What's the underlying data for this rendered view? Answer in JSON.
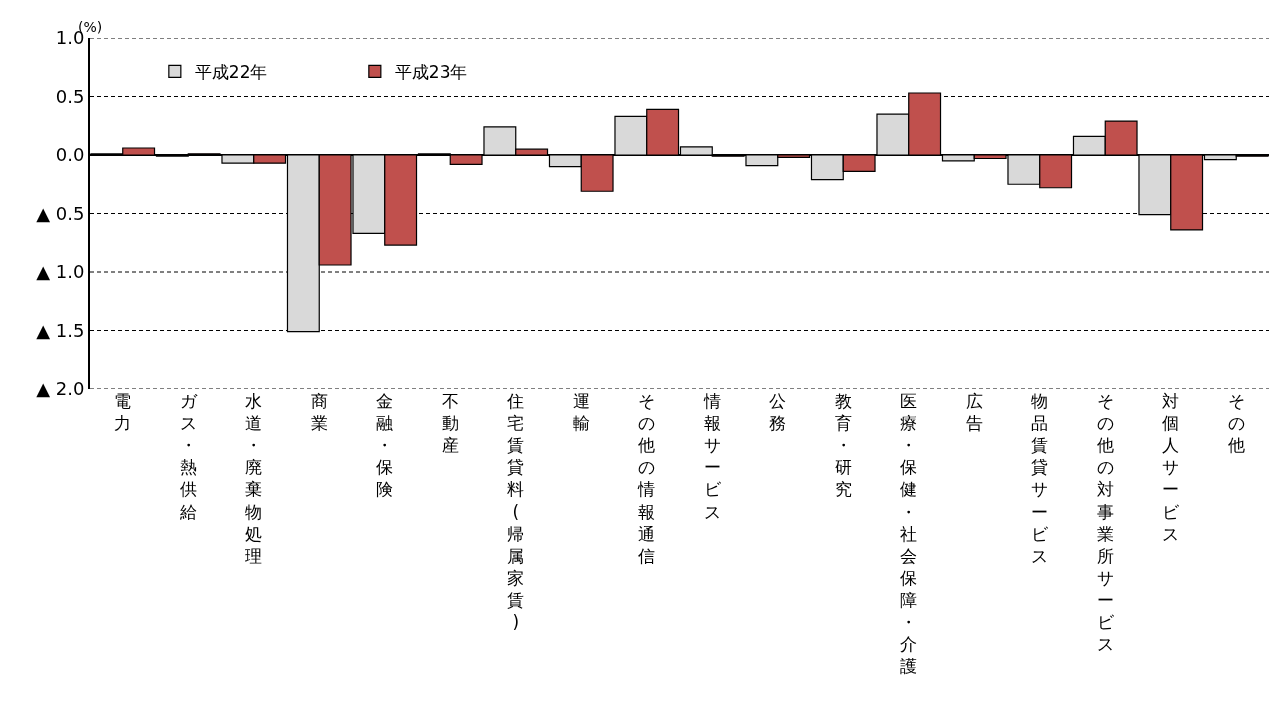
{
  "chart_data": {
    "type": "bar",
    "ylabel": "(%)",
    "categories": [
      "電力",
      "ガス・熱供給",
      "水道・廃棄物処理",
      "商業",
      "金融・保険",
      "不動産",
      "住宅賃貸料(帰属家賃)",
      "運輸",
      "その他の情報通信",
      "情報サービス",
      "公務",
      "教育・研究",
      "医療・保健・社会保障・介護",
      "広告",
      "物品賃貸サービス",
      "その他の対事業所サービス",
      "対個人サービス",
      "その他"
    ],
    "series": [
      {
        "name": "平成22年",
        "color": "#d9d9d9",
        "values": [
          0.01,
          -0.01,
          -0.07,
          -1.51,
          -0.67,
          0.01,
          0.24,
          -0.1,
          0.33,
          0.07,
          -0.09,
          -0.21,
          0.35,
          -0.05,
          -0.25,
          0.16,
          -0.51,
          -0.04
        ]
      },
      {
        "name": "平成23年",
        "color": "#c0504d",
        "values": [
          0.06,
          0.01,
          -0.07,
          -0.94,
          -0.77,
          -0.08,
          0.05,
          -0.31,
          0.39,
          -0.01,
          -0.02,
          -0.14,
          0.53,
          -0.03,
          -0.28,
          0.29,
          -0.64,
          -0.01
        ]
      }
    ],
    "ylim": [
      -2.0,
      1.0
    ],
    "yticks": [
      {
        "value": 1.0,
        "label": "1.0"
      },
      {
        "value": 0.5,
        "label": "0.5"
      },
      {
        "value": 0,
        "label": "0.0"
      },
      {
        "value": -0.5,
        "label": "▲ 0.5"
      },
      {
        "value": -1.0,
        "label": "▲ 1.0"
      },
      {
        "value": -1.5,
        "label": "▲ 1.5"
      },
      {
        "value": -2.0,
        "label": "▲ 2.0"
      }
    ],
    "grid": "y",
    "legend": "top left"
  }
}
